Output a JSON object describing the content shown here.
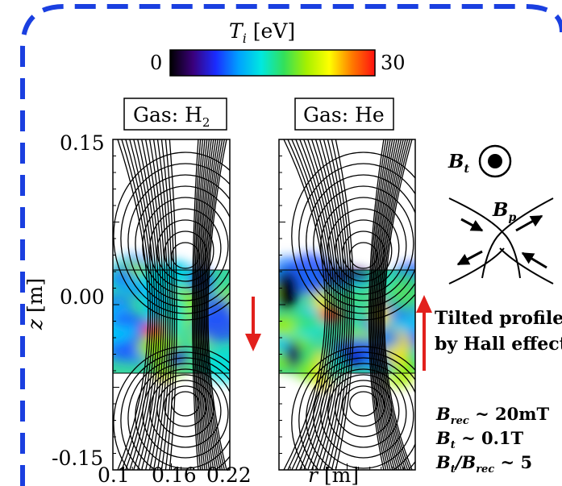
{
  "colorbar": {
    "title_var": "T",
    "title_sub": "i",
    "title_unit": "[eV]",
    "min_label": "0",
    "max_label": "30",
    "stops": [
      "#000000",
      "#3a007a",
      "#1a2cff",
      "#00a0ff",
      "#00e8e0",
      "#33e05a",
      "#a6f000",
      "#ffff00",
      "#ff7a00",
      "#ff1010"
    ]
  },
  "panels": [
    {
      "gas_prefix": "Gas: H",
      "gas_sub": "2",
      "arrow": "down",
      "arrow_color": "#e2201c"
    },
    {
      "gas_prefix": "Gas: He",
      "gas_sub": "",
      "arrow": "up",
      "arrow_color": "#e2201c"
    }
  ],
  "axes": {
    "y_label_var": "z",
    "y_label_unit": "[m]",
    "y_ticks": [
      "0.15",
      "0.00",
      "-0.15"
    ],
    "x_ticks": [
      "0.1",
      "0.16",
      "0.22"
    ],
    "x_label_var": "r",
    "x_label_unit": "[m]"
  },
  "annotations": {
    "bt_label": "B",
    "bt_sub": "t",
    "bp_label": "B",
    "bp_sub": "p",
    "tilt_line1": "Tilted profile",
    "tilt_line2": "by Hall effect",
    "brec_1": "B",
    "brec_1_sub": "rec",
    "brec_1_val": " ~ 20mT",
    "bt_2": "B",
    "bt_2_sub": "t",
    "bt_2_val": " ~ 0.1T",
    "ratio_num": "B",
    "ratio_num_sub": "t",
    "ratio_den": "/B",
    "ratio_den_sub": "rec",
    "ratio_val": " ~ 5"
  },
  "border_color": "#1a3fe0"
}
